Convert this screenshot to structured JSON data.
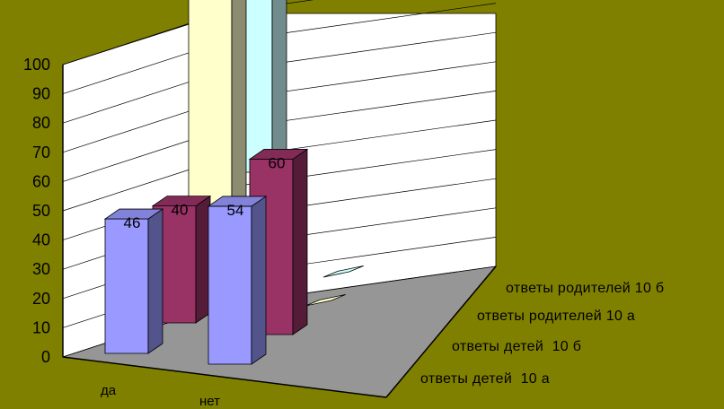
{
  "chart_data": {
    "type": "bar",
    "subtype": "3d-column",
    "categories": [
      "да",
      "нет"
    ],
    "series": [
      {
        "name": "ответы детей  10 а",
        "values": [
          46,
          54
        ],
        "color": "#9999FF"
      },
      {
        "name": "ответы детей  10 б",
        "values": [
          40,
          60
        ],
        "color": "#993366"
      },
      {
        "name": "ответы родителей 10 а",
        "values": [
          96,
          0
        ],
        "color": "#FFFFCC"
      },
      {
        "name": "ответы родителей 10 б",
        "values": [
          100,
          0
        ],
        "color": "#CCFFFF"
      }
    ],
    "data_labels": [
      [
        "46",
        "54"
      ],
      [
        "40",
        "60"
      ],
      [
        "",
        ""
      ],
      [
        "",
        ""
      ]
    ],
    "y_ticks": [
      "0",
      "10",
      "20",
      "30",
      "40",
      "50",
      "60",
      "70",
      "80",
      "90",
      "100"
    ],
    "ylim": [
      0,
      100
    ],
    "grid": true,
    "title": "",
    "xlabel": "",
    "ylabel": ""
  },
  "colors": {
    "background": "#808000",
    "back_wall": "#FFFFFF",
    "floor": "#969696",
    "gridline": "#000000"
  }
}
